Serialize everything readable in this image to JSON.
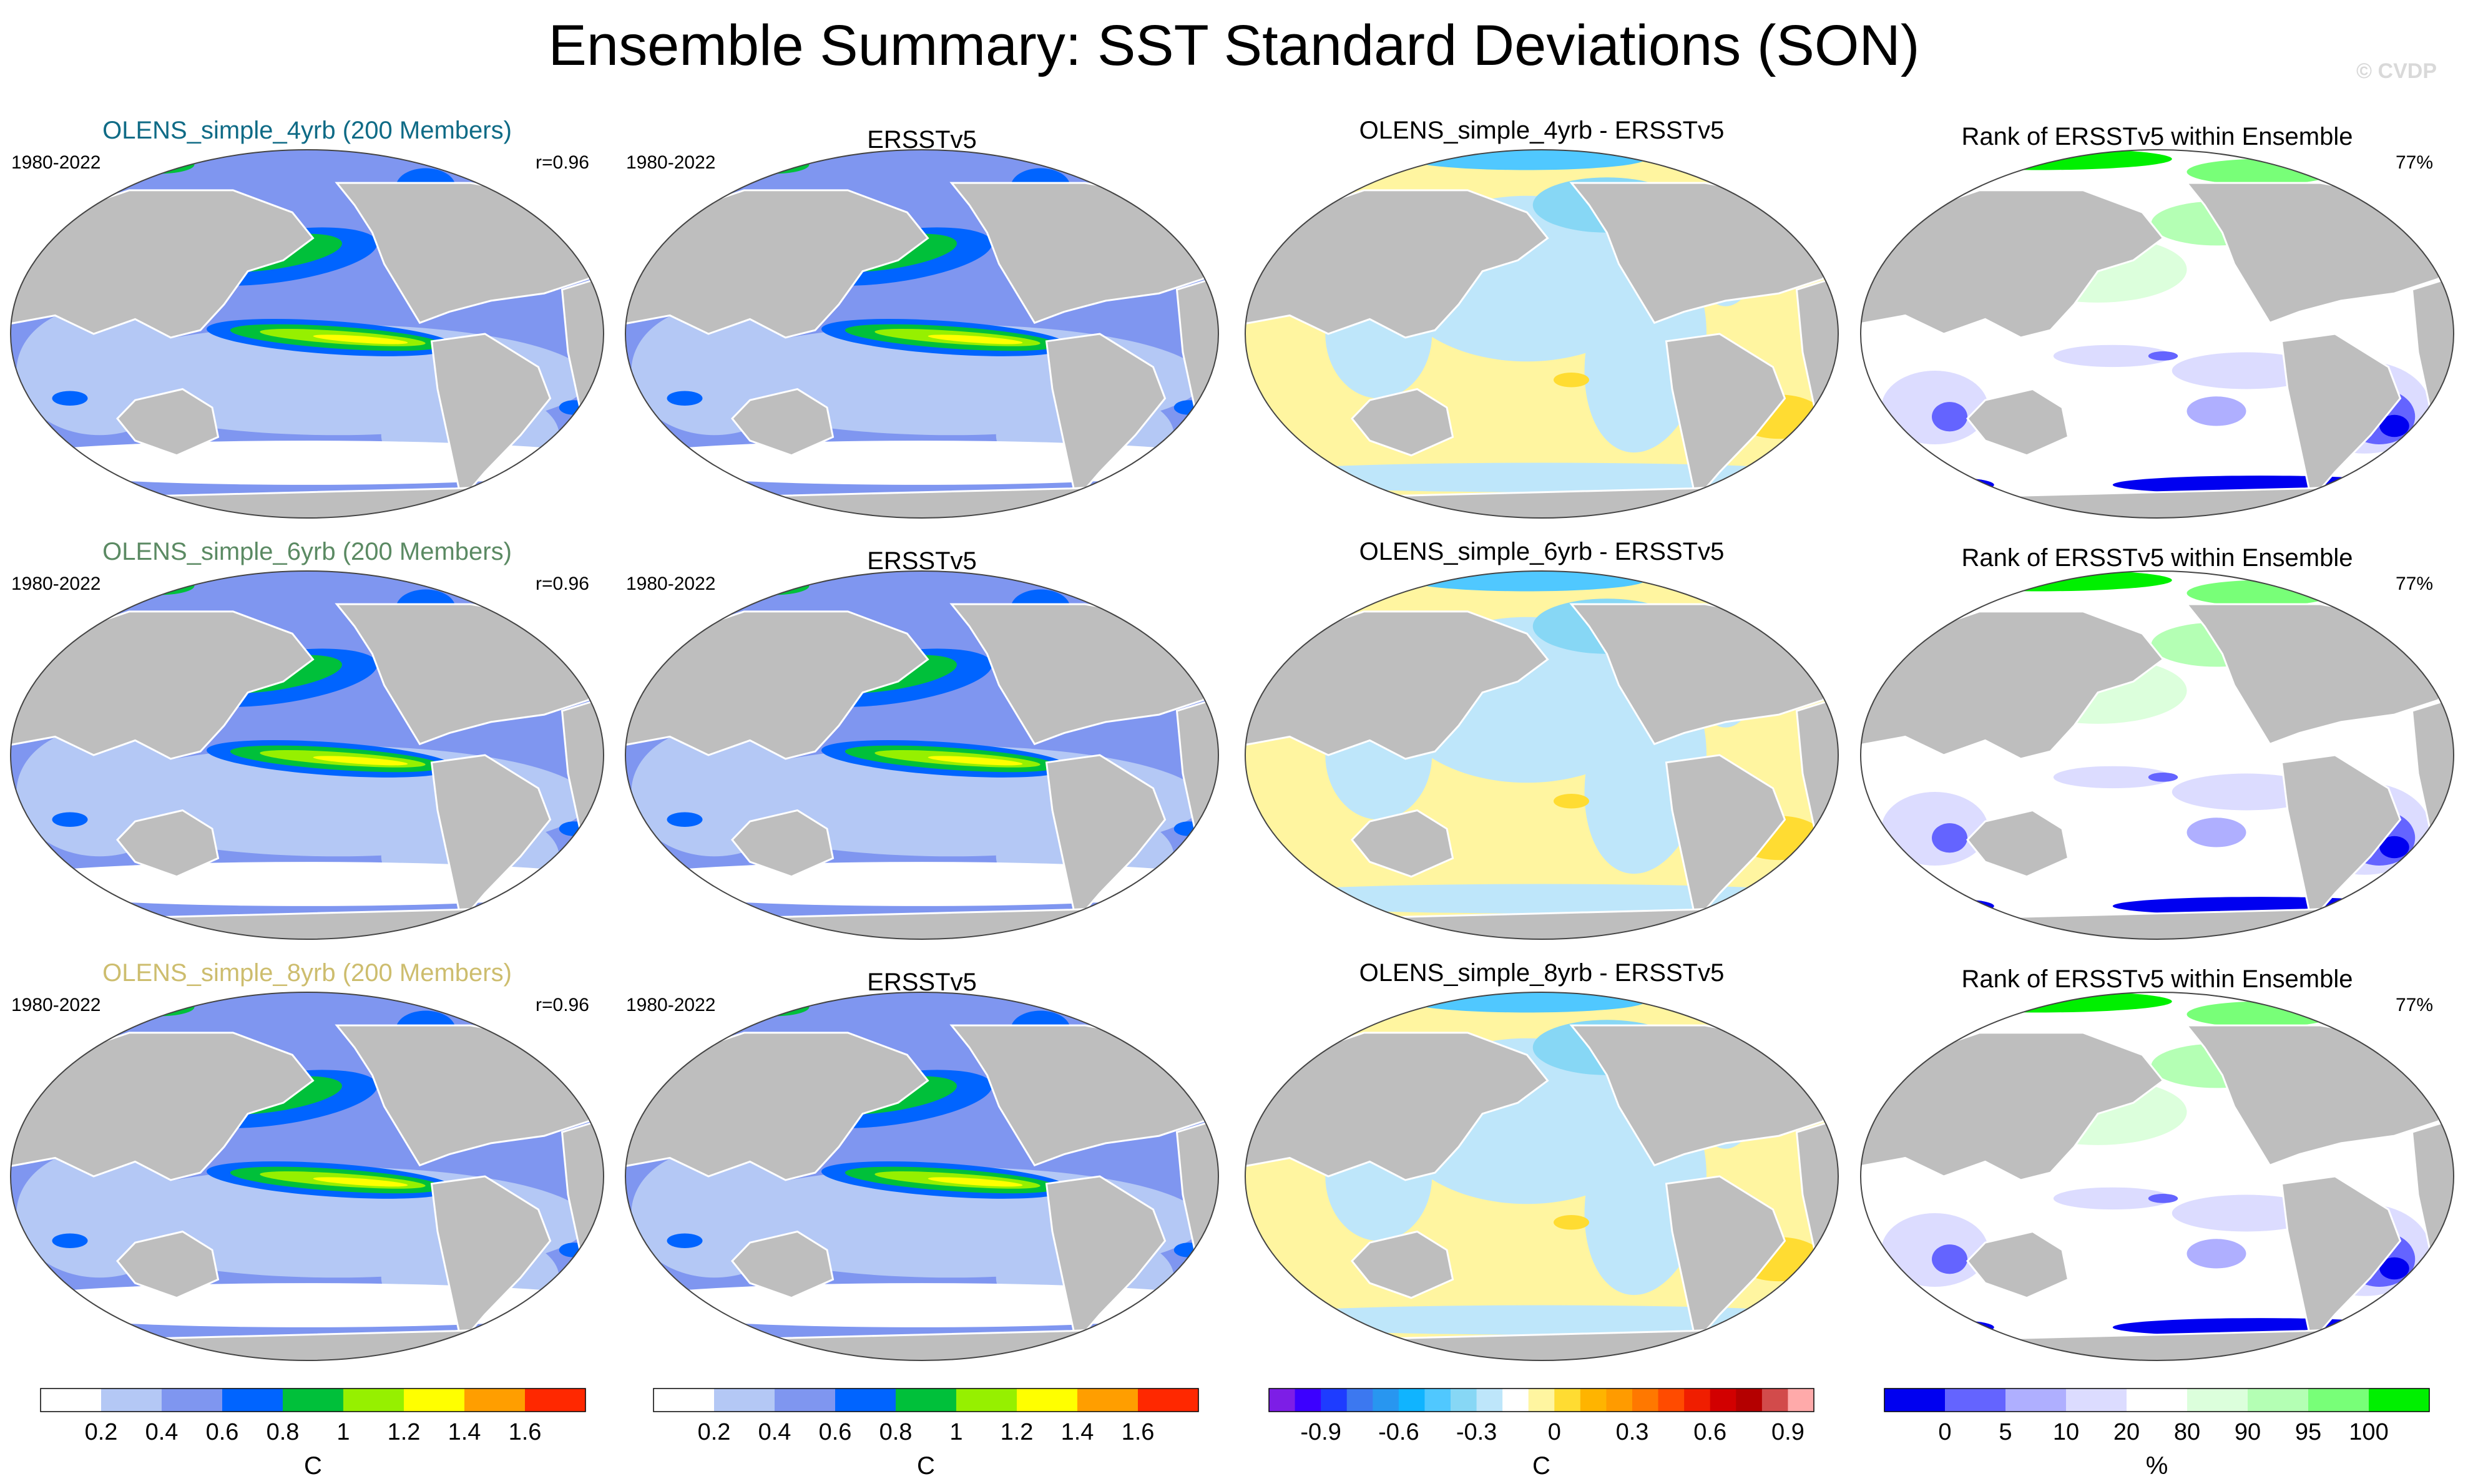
{
  "title": "Ensemble Summary: SST Standard Deviations (SON)",
  "watermark": "© CVDP",
  "colors": {
    "land": "#bebebe",
    "rows": [
      "#0f6b86",
      "#5b8a63",
      "#cdbd6e"
    ]
  },
  "rows": [
    {
      "ensemble_title": "OLENS_simple_4yrb (200 Members)",
      "period": "1980-2022",
      "correlation": "r=0.96",
      "obs_title": "ERSSTv5",
      "obs_period": "1980-2022",
      "diff_title": "OLENS_simple_4yrb - ERSSTv5",
      "rank_title": "Rank of ERSSTv5 within Ensemble",
      "rank_pct": "77%"
    },
    {
      "ensemble_title": "OLENS_simple_6yrb (200 Members)",
      "period": "1980-2022",
      "correlation": "r=0.96",
      "obs_title": "ERSSTv5",
      "obs_period": "1980-2022",
      "diff_title": "OLENS_simple_6yrb - ERSSTv5",
      "rank_title": "Rank of ERSSTv5 within Ensemble",
      "rank_pct": "77%"
    },
    {
      "ensemble_title": "OLENS_simple_8yrb (200 Members)",
      "period": "1980-2022",
      "correlation": "r=0.96",
      "obs_title": "ERSSTv5",
      "obs_period": "1980-2022",
      "diff_title": "OLENS_simple_8yrb - ERSSTv5",
      "rank_title": "Rank of ERSSTv5 within Ensemble",
      "rank_pct": "77%"
    }
  ],
  "chart_data": {
    "type": "heatmap",
    "description_of_layout": "3 rows x 4 columns of global maps",
    "colorbars": [
      {
        "name": "sst-stddev",
        "unit_label": "C",
        "colors": [
          "#ffffff",
          "#b4c8f5",
          "#7f96f0",
          "#0064ff",
          "#00c03a",
          "#96f000",
          "#ffff00",
          "#ff9e00",
          "#ff2800"
        ],
        "tick_labels": [
          "0.2",
          "0.4",
          "0.6",
          "0.8",
          "1",
          "1.2",
          "1.4",
          "1.6"
        ]
      },
      {
        "name": "sst-stddev-obs",
        "unit_label": "C",
        "colors": [
          "#ffffff",
          "#b4c8f5",
          "#7f96f0",
          "#0064ff",
          "#00c03a",
          "#96f000",
          "#ffff00",
          "#ff9e00",
          "#ff2800"
        ],
        "tick_labels": [
          "0.2",
          "0.4",
          "0.6",
          "0.8",
          "1",
          "1.2",
          "1.4",
          "1.6"
        ]
      },
      {
        "name": "difference",
        "unit_label": "C",
        "colors": [
          "#7d1ee6",
          "#3c00ff",
          "#1e3cff",
          "#3c78f0",
          "#2896f0",
          "#10b4ff",
          "#50c8ff",
          "#87d7f5",
          "#bee6fa",
          "#ffffff",
          "#fff5a0",
          "#ffdc32",
          "#ffb400",
          "#ff9b00",
          "#ff7800",
          "#ff4b00",
          "#f01e00",
          "#d20000",
          "#b40000",
          "#d24b4b",
          "#ffaaaa"
        ],
        "tick_labels": [
          "-0.9",
          "-0.6",
          "-0.3",
          "0",
          "0.3",
          "0.6",
          "0.9"
        ]
      },
      {
        "name": "rank",
        "unit_label": "%",
        "colors": [
          "#0000f0",
          "#6464ff",
          "#afafff",
          "#dcdcff",
          "#ffffff",
          "#dcffdc",
          "#b4ffb4",
          "#78ff78",
          "#00f000"
        ],
        "tick_labels": [
          "0",
          "5",
          "10",
          "20",
          "80",
          "90",
          "95",
          "100"
        ]
      }
    ]
  }
}
